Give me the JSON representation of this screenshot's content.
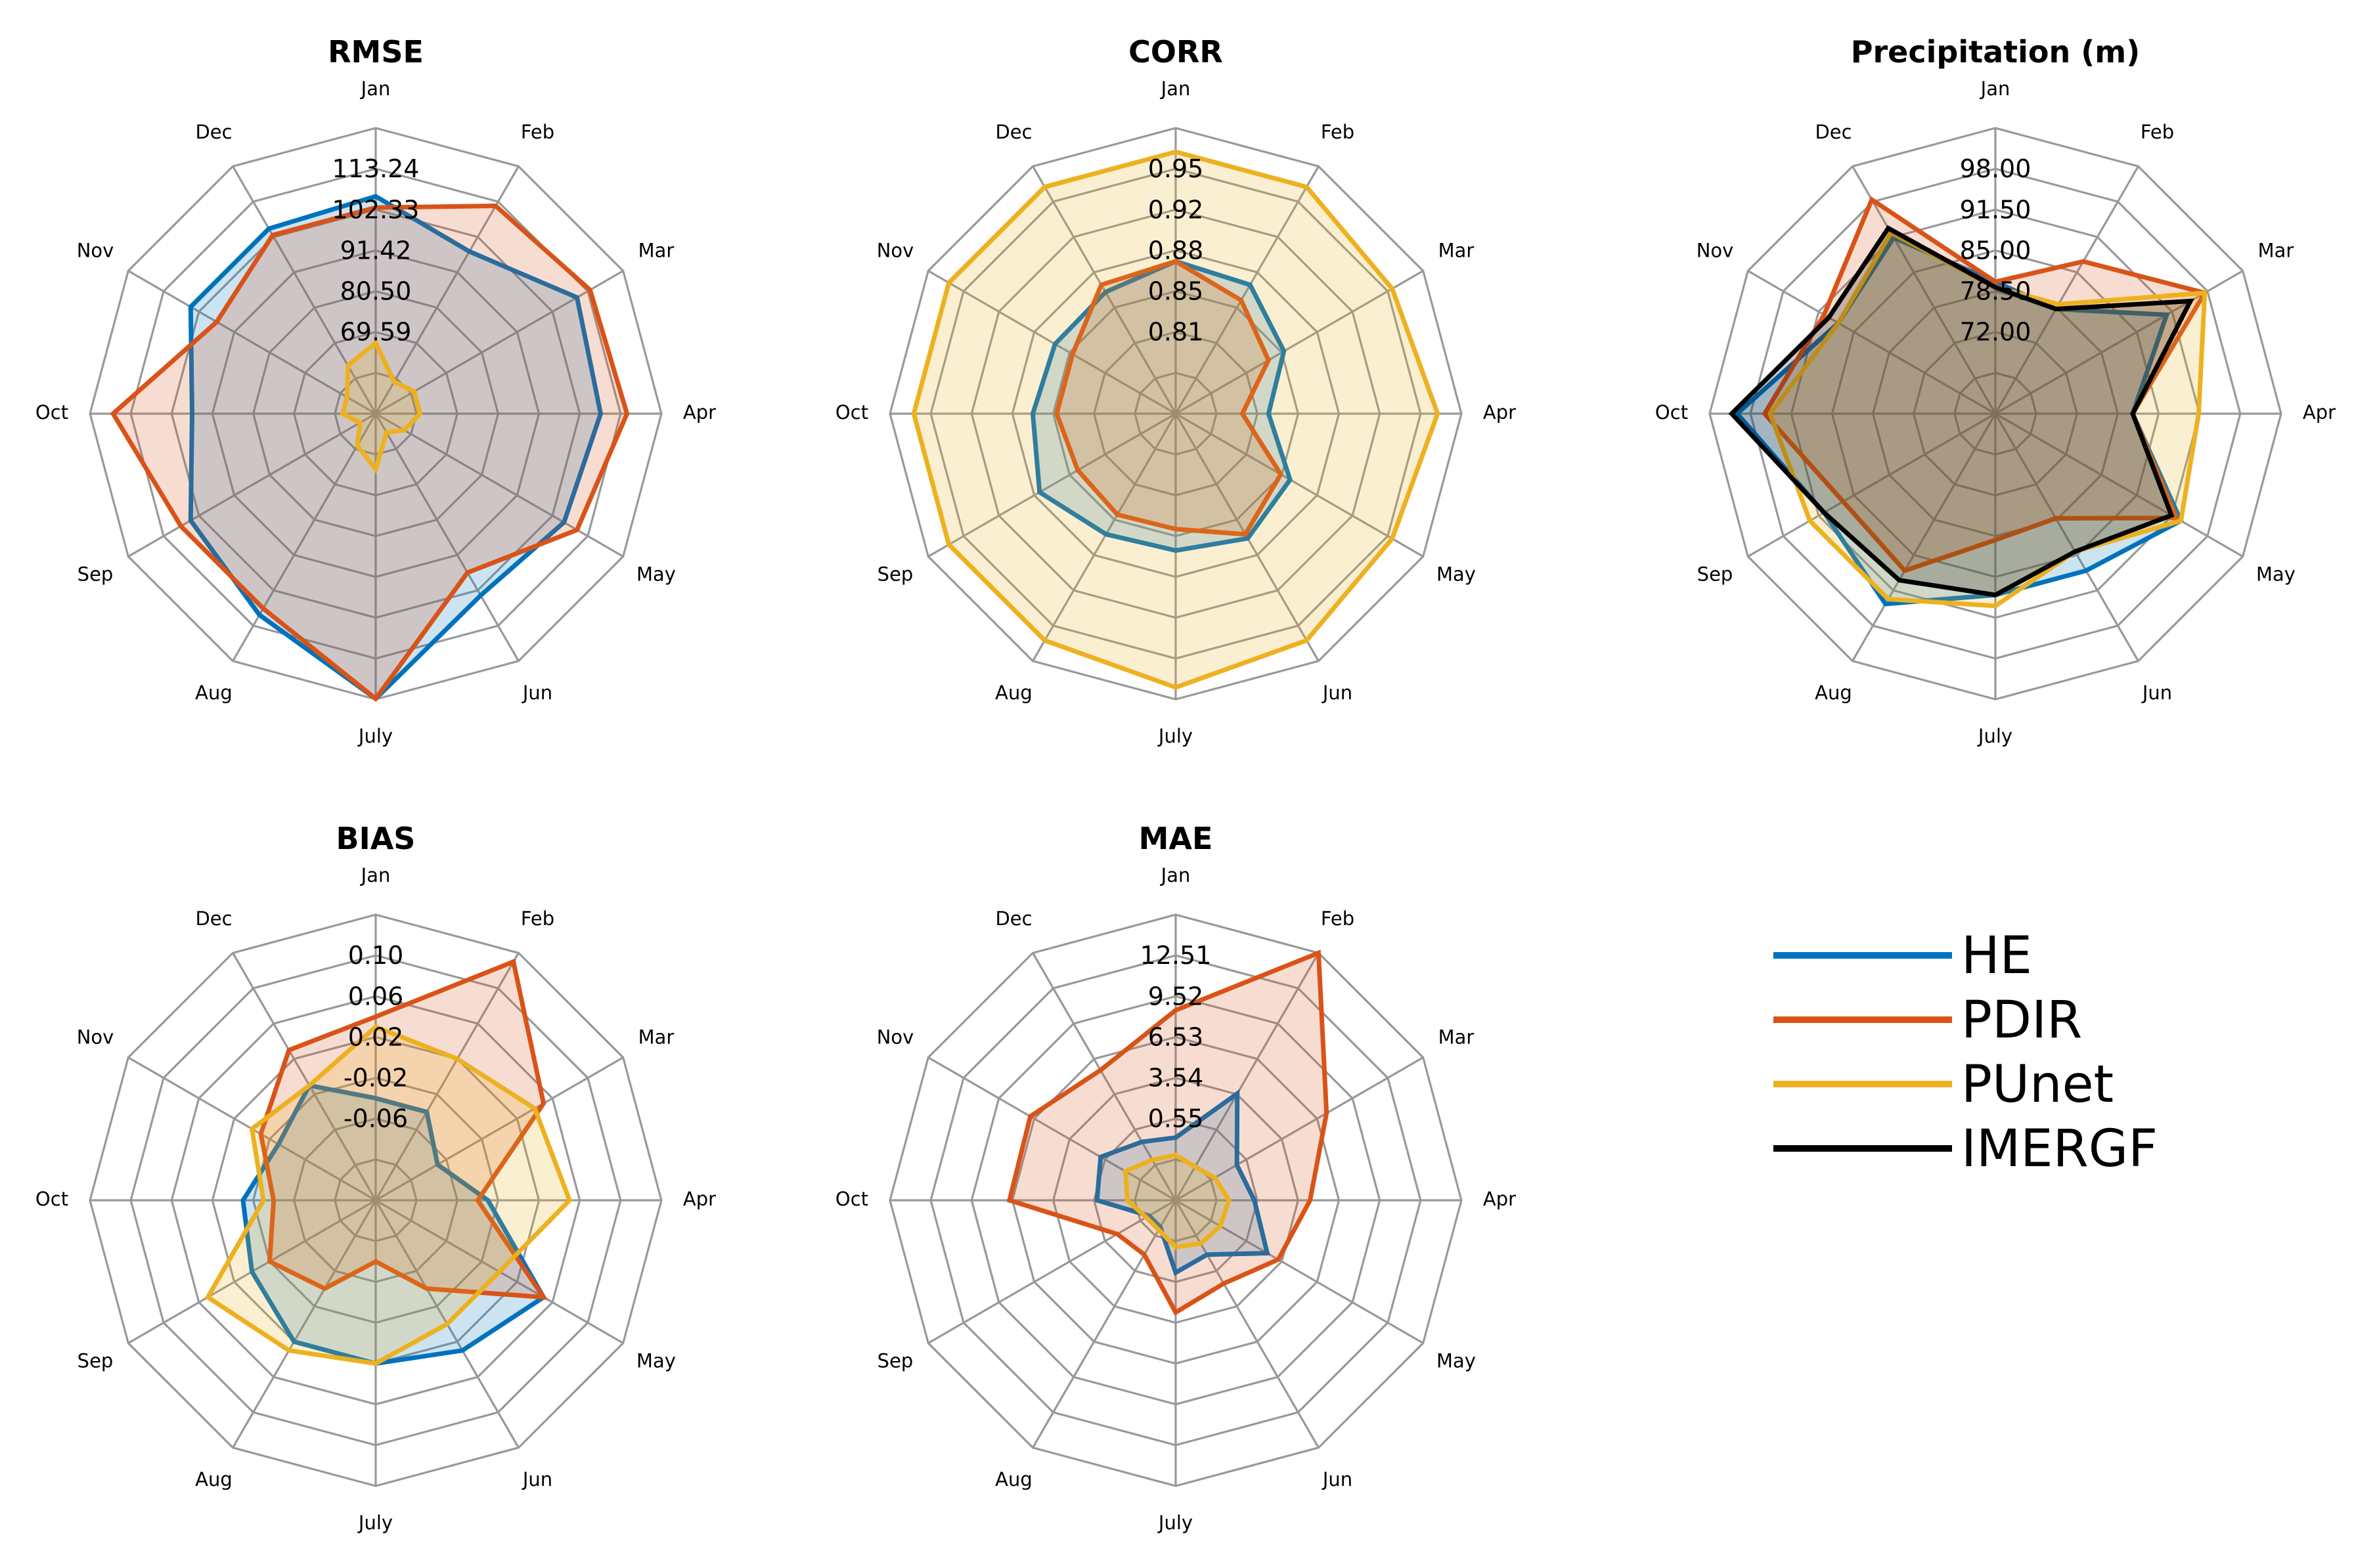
{
  "series_colors": {
    "HE": "#0072bd",
    "PDIR": "#d95319",
    "PUnet": "#edb120",
    "IMERGF": "#000000"
  },
  "legend": {
    "placement": "right",
    "entries": [
      "HE",
      "PDIR",
      "PUnet",
      "IMERGF"
    ]
  },
  "chart_data": [
    {
      "type": "radar",
      "title": "RMSE",
      "axes": [
        "Jan",
        "Feb",
        "Mar",
        "Apr",
        "May",
        "Jun",
        "July",
        "Aug",
        "Sep",
        "Oct",
        "Nov",
        "Dec"
      ],
      "range": [
        48.2,
        124.15
      ],
      "ticks": [
        "69.59",
        "80.50",
        "91.42",
        "102.33",
        "113.24"
      ],
      "series": [
        {
          "name": "HE",
          "values": [
            106,
            98,
            110,
            108,
            106,
            104,
            124,
            110,
            105,
            97,
            105,
            105
          ]
        },
        {
          "name": "PDIR",
          "values": [
            103,
            112,
            114,
            115,
            110,
            97,
            124,
            108,
            108,
            118,
            97,
            103
          ]
        },
        {
          "name": "PUnet",
          "values": [
            67,
            58,
            60,
            60,
            57,
            54,
            63,
            58,
            53,
            57,
            57,
            63
          ]
        }
      ]
    },
    {
      "type": "radar",
      "title": "CORR",
      "axes": [
        "Jan",
        "Feb",
        "Mar",
        "Apr",
        "May",
        "Jun",
        "July",
        "Aug",
        "Sep",
        "Oct",
        "Nov",
        "Dec"
      ],
      "range": [
        0.74,
        0.98
      ],
      "ticks": [
        "0.81",
        "0.85",
        "0.88",
        "0.92",
        "0.95"
      ],
      "series": [
        {
          "name": "HE",
          "values": [
            0.868,
            0.865,
            0.845,
            0.818,
            0.851,
            0.861,
            0.855,
            0.857,
            0.872,
            0.86,
            0.857,
            0.858
          ]
        },
        {
          "name": "PDIR",
          "values": [
            0.868,
            0.85,
            0.83,
            0.796,
            0.842,
            0.857,
            0.837,
            0.838,
            0.835,
            0.84,
            0.84,
            0.865
          ]
        },
        {
          "name": "PUnet",
          "values": [
            0.96,
            0.96,
            0.95,
            0.96,
            0.95,
            0.96,
            0.97,
            0.96,
            0.96,
            0.96,
            0.96,
            0.96
          ]
        }
      ]
    },
    {
      "type": "radar",
      "title": "Precipitation (m)",
      "axes": [
        "Jan",
        "Feb",
        "Mar",
        "Apr",
        "May",
        "Jun",
        "July",
        "Aug",
        "Sep",
        "Oct",
        "Nov",
        "Dec"
      ],
      "range": [
        59,
        111
      ],
      "ticks": [
        "72.00",
        "78.50",
        "85.00",
        "91.50",
        "98.00"
      ],
      "series": [
        {
          "name": "HE",
          "values": [
            83,
            81,
            95,
            84,
            98,
            92,
            92,
            99,
            95,
            106,
            92,
            96
          ]
        },
        {
          "name": "PDIR",
          "values": [
            83,
            91,
            103,
            84,
            97,
            81,
            82,
            92,
            91,
            101,
            95,
            104
          ]
        },
        {
          "name": "PUnet",
          "values": [
            82,
            82,
            103,
            96,
            98,
            88,
            94,
            98,
            98,
            100,
            92,
            97
          ]
        },
        {
          "name": "IMERGF",
          "values": [
            82,
            81,
            100,
            84,
            96,
            88,
            92,
            94,
            95,
            107,
            94,
            98
          ]
        }
      ]
    },
    {
      "type": "radar",
      "title": "BIAS",
      "axes": [
        "Jan",
        "Feb",
        "Mar",
        "Apr",
        "May",
        "Jun",
        "July",
        "Aug",
        "Sep",
        "Oct",
        "Nov",
        "Dec"
      ],
      "range": [
        -0.14,
        0.14
      ],
      "ticks": [
        "-0.06",
        "-0.02",
        "0.02",
        "0.06",
        "0.10"
      ],
      "series": [
        {
          "name": "HE",
          "values": [
            -0.04,
            -0.04,
            -0.07,
            -0.03,
            0.05,
            0.03,
            0.02,
            0.02,
            0.0,
            -0.01,
            -0.03,
            -0.01
          ]
        },
        {
          "name": "PDIR",
          "values": [
            0.04,
            0.13,
            0.05,
            -0.04,
            0.05,
            -0.04,
            -0.08,
            -0.04,
            -0.02,
            -0.04,
            -0.01,
            0.03
          ]
        },
        {
          "name": "PUnet",
          "values": [
            0.03,
            0.02,
            0.04,
            0.05,
            0.0,
            0.0,
            0.02,
            0.03,
            0.05,
            -0.03,
            0.0,
            -0.01
          ]
        }
      ]
    },
    {
      "type": "radar",
      "title": "MAE",
      "axes": [
        "Jan",
        "Feb",
        "Mar",
        "Apr",
        "May",
        "Jun",
        "July",
        "Aug",
        "Sep",
        "Oct",
        "Nov",
        "Dec"
      ],
      "range": [
        -2.44,
        15.5
      ],
      "ticks": [
        "0.55",
        "3.54",
        "6.53",
        "9.52",
        "12.51"
      ],
      "series": [
        {
          "name": "HE",
          "values": [
            1.5,
            5.3,
            2.0,
            2.5,
            4.2,
            1.5,
            2.1,
            -0.5,
            -0.5,
            2.5,
            3.0,
            1.8
          ]
        },
        {
          "name": "PDIR",
          "values": [
            9.5,
            15.5,
            8.5,
            6.0,
            5.0,
            3.6,
            4.6,
            1.5,
            1.8,
            8.0,
            8.1,
            7.0
          ]
        },
        {
          "name": "PUnet",
          "values": [
            0.4,
            0.0,
            0.4,
            0.9,
            0.8,
            0.7,
            0.5,
            -0.3,
            -0.3,
            0.6,
            1.2,
            0.5
          ]
        }
      ]
    }
  ]
}
